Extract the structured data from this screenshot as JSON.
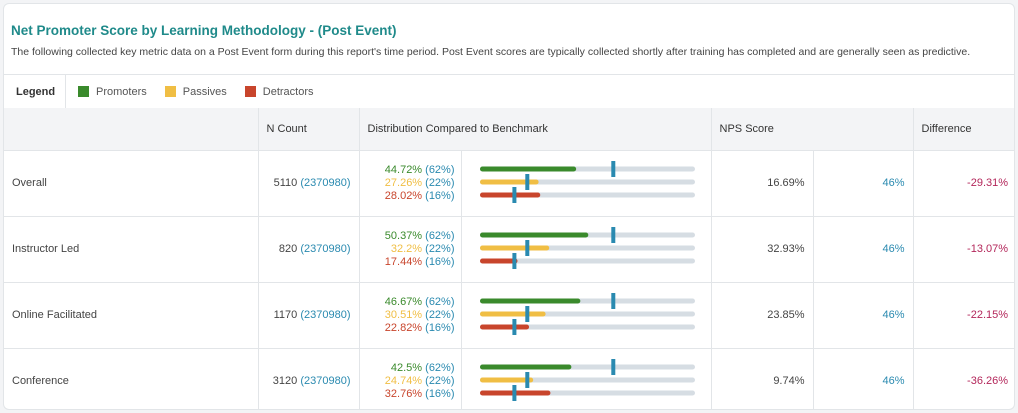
{
  "title": "Net Promoter Score by Learning Methodology - (Post Event)",
  "description": "The following collected key metric data on a Post Event form during this report's time period. Post Event scores are typically collected shortly after training has completed and are generally seen as predictive.",
  "legend": {
    "title": "Legend",
    "items": [
      {
        "label": "Promoters",
        "color": "#3a8a2c"
      },
      {
        "label": "Passives",
        "color": "#f0be44"
      },
      {
        "label": "Detractors",
        "color": "#c8452c"
      }
    ]
  },
  "colors": {
    "promoters": "#3a8a2c",
    "passives": "#f0be44",
    "detractors": "#c8452c",
    "track": "#d6dde3",
    "benchmark": "#2a8ab0",
    "difference": "#b3265a"
  },
  "columns": {
    "label": "",
    "n_count": "N Count",
    "distribution": "Distribution Compared to Benchmark",
    "nps": "NPS Score",
    "difference": "Difference"
  },
  "rows": [
    {
      "label": "Overall",
      "count": "5110",
      "count_bench": "(2370980)",
      "promoters": {
        "text": "44.72%",
        "bench": "(62%)",
        "value": 44.72,
        "bench_value": 62
      },
      "passives": {
        "text": "27.26%",
        "bench": "(22%)",
        "value": 27.26,
        "bench_value": 22
      },
      "detractors": {
        "text": "28.02%",
        "bench": "(16%)",
        "value": 28.02,
        "bench_value": 16
      },
      "nps": "16.69%",
      "nps_bench": "46%",
      "difference": "-29.31%"
    },
    {
      "label": "Instructor Led",
      "count": "820",
      "count_bench": "(2370980)",
      "promoters": {
        "text": "50.37%",
        "bench": "(62%)",
        "value": 50.37,
        "bench_value": 62
      },
      "passives": {
        "text": "32.2%",
        "bench": "(22%)",
        "value": 32.2,
        "bench_value": 22
      },
      "detractors": {
        "text": "17.44%",
        "bench": "(16%)",
        "value": 17.44,
        "bench_value": 16
      },
      "nps": "32.93%",
      "nps_bench": "46%",
      "difference": "-13.07%"
    },
    {
      "label": "Online Facilitated",
      "count": "1170",
      "count_bench": "(2370980)",
      "promoters": {
        "text": "46.67%",
        "bench": "(62%)",
        "value": 46.67,
        "bench_value": 62
      },
      "passives": {
        "text": "30.51%",
        "bench": "(22%)",
        "value": 30.51,
        "bench_value": 22
      },
      "detractors": {
        "text": "22.82%",
        "bench": "(16%)",
        "value": 22.82,
        "bench_value": 16
      },
      "nps": "23.85%",
      "nps_bench": "46%",
      "difference": "-22.15%"
    },
    {
      "label": "Conference",
      "count": "3120",
      "count_bench": "(2370980)",
      "promoters": {
        "text": "42.5%",
        "bench": "(62%)",
        "value": 42.5,
        "bench_value": 62
      },
      "passives": {
        "text": "24.74%",
        "bench": "(22%)",
        "value": 24.74,
        "bench_value": 22
      },
      "detractors": {
        "text": "32.76%",
        "bench": "(16%)",
        "value": 32.76,
        "bench_value": 16
      },
      "nps": "9.74%",
      "nps_bench": "46%",
      "difference": "-36.26%"
    }
  ]
}
